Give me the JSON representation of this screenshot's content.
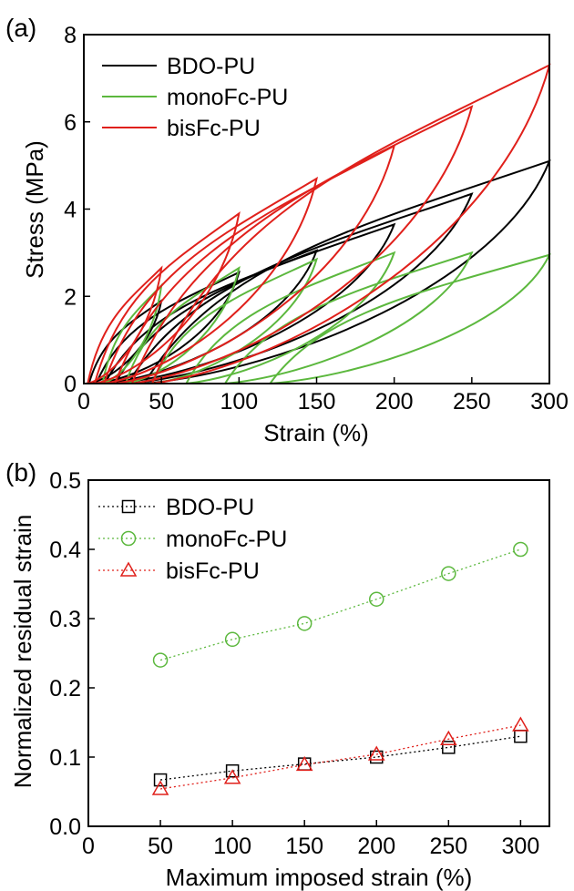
{
  "chart_data": [
    {
      "panel_label": "(a)",
      "type": "line",
      "xlabel": "Strain (%)",
      "ylabel": "Stress (MPa)",
      "xlim": [
        0,
        300
      ],
      "ylim": [
        0,
        8
      ],
      "xticks": [
        0,
        50,
        100,
        150,
        200,
        250,
        300
      ],
      "yticks": [
        0,
        2,
        4,
        6,
        8
      ],
      "legend_position": "top-left",
      "series": [
        {
          "name": "BDO-PU",
          "color": "#000000",
          "cycles": [
            {
              "max_strain": 50,
              "peak_stress": 1.9,
              "residual": 3.3
            },
            {
              "max_strain": 100,
              "peak_stress": 2.55,
              "residual": 8
            },
            {
              "max_strain": 150,
              "peak_stress": 3.05,
              "residual": 13.5
            },
            {
              "max_strain": 200,
              "peak_stress": 3.65,
              "residual": 20
            },
            {
              "max_strain": 250,
              "peak_stress": 4.35,
              "residual": 28.5
            },
            {
              "max_strain": 300,
              "peak_stress": 5.1,
              "residual": 39
            }
          ]
        },
        {
          "name": "monoFc-PU",
          "color": "#5cb83e",
          "cycles": [
            {
              "max_strain": 50,
              "peak_stress": 2.25,
              "residual": 12
            },
            {
              "max_strain": 100,
              "peak_stress": 2.65,
              "residual": 27
            },
            {
              "max_strain": 150,
              "peak_stress": 2.85,
              "residual": 44
            },
            {
              "max_strain": 200,
              "peak_stress": 3.0,
              "residual": 66
            },
            {
              "max_strain": 250,
              "peak_stress": 3.0,
              "residual": 91
            },
            {
              "max_strain": 300,
              "peak_stress": 2.95,
              "residual": 120
            }
          ]
        },
        {
          "name": "bisFc-PU",
          "color": "#e0201b",
          "cycles": [
            {
              "max_strain": 50,
              "peak_stress": 2.65,
              "residual": 2.5
            },
            {
              "max_strain": 100,
              "peak_stress": 3.9,
              "residual": 7
            },
            {
              "max_strain": 150,
              "peak_stress": 4.7,
              "residual": 13
            },
            {
              "max_strain": 200,
              "peak_stress": 5.45,
              "residual": 20
            },
            {
              "max_strain": 250,
              "peak_stress": 6.35,
              "residual": 31
            },
            {
              "max_strain": 300,
              "peak_stress": 7.3,
              "residual": 44
            }
          ]
        }
      ]
    },
    {
      "panel_label": "(b)",
      "type": "scatter",
      "xlabel": "Maximum imposed strain (%)",
      "ylabel": "Normalized residual strain",
      "xlim": [
        0,
        320
      ],
      "ylim": [
        0.0,
        0.5
      ],
      "xticks": [
        0,
        50,
        100,
        150,
        200,
        250,
        300
      ],
      "yticks": [
        "0.0",
        "0.1",
        "0.2",
        "0.3",
        "0.4",
        "0.5"
      ],
      "legend_position": "top-left",
      "x": [
        50,
        100,
        150,
        200,
        250,
        300
      ],
      "series": [
        {
          "name": "BDO-PU",
          "color": "#000000",
          "marker": "square",
          "values": [
            0.067,
            0.08,
            0.09,
            0.1,
            0.114,
            0.13
          ]
        },
        {
          "name": "monoFc-PU",
          "color": "#5cb83e",
          "marker": "circle",
          "values": [
            0.24,
            0.27,
            0.293,
            0.328,
            0.365,
            0.4
          ]
        },
        {
          "name": "bisFc-PU",
          "color": "#e0201b",
          "marker": "triangle",
          "values": [
            0.054,
            0.07,
            0.089,
            0.104,
            0.126,
            0.146
          ]
        }
      ]
    }
  ]
}
